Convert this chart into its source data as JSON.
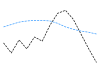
{
  "x": [
    0,
    1,
    2,
    3,
    4,
    5,
    6,
    7,
    8,
    9,
    10,
    11,
    12
  ],
  "line1_y": [
    0.72,
    0.76,
    0.8,
    0.82,
    0.83,
    0.83,
    0.82,
    0.78,
    0.72,
    0.68,
    0.65,
    0.63,
    0.6
  ],
  "line2_y": [
    0.45,
    0.28,
    0.5,
    0.35,
    0.55,
    0.48,
    0.75,
    0.95,
    1.0,
    0.85,
    0.6,
    0.35,
    0.12
  ],
  "line1_color": "#3399ff",
  "line2_color": "#111111",
  "background_color": "#ffffff",
  "figsize": [
    1.0,
    0.71
  ],
  "dpi": 100
}
